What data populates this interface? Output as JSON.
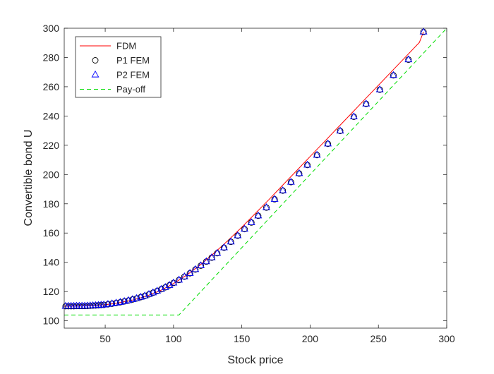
{
  "chart_data": {
    "type": "line",
    "title": "",
    "xlabel": "Stock price",
    "ylabel": "Convertible bond U",
    "xlim": [
      20,
      300
    ],
    "ylim": [
      95,
      300
    ],
    "xticks": [
      50,
      100,
      150,
      200,
      250,
      300
    ],
    "yticks": [
      100,
      120,
      140,
      160,
      180,
      200,
      220,
      240,
      260,
      280,
      300
    ],
    "grid": false,
    "legend_position": "top-left",
    "series": [
      {
        "name": "FDM",
        "style": "solid-line",
        "color": "#ff0000",
        "x": [
          20,
          30,
          40,
          50,
          60,
          70,
          80,
          90,
          100,
          110,
          120,
          130,
          140,
          150,
          160,
          170,
          180,
          190,
          200,
          210,
          220,
          230,
          240,
          250,
          260,
          270,
          280,
          283
        ],
        "y": [
          110.0,
          110.1,
          110.4,
          111.0,
          112.3,
          114.2,
          116.8,
          120.5,
          125.5,
          131.5,
          138.5,
          146.5,
          155.0,
          164.0,
          173.5,
          183.0,
          192.8,
          202.5,
          212.3,
          222.0,
          231.8,
          241.5,
          251.3,
          261.0,
          270.8,
          280.5,
          290.3,
          297.5
        ]
      },
      {
        "name": "P1 FEM",
        "style": "circle-markers",
        "color": "#000000",
        "x": [
          21,
          23,
          25,
          27,
          29,
          31,
          33,
          35,
          37,
          39,
          41,
          43,
          45,
          47,
          49,
          52,
          55,
          58,
          61,
          64,
          67,
          70,
          73,
          76,
          79,
          82,
          85,
          88,
          91,
          94,
          97,
          100,
          104,
          108,
          112,
          116,
          120,
          124,
          128,
          132,
          137,
          142,
          147,
          152,
          157,
          162,
          168,
          174,
          180,
          186,
          192,
          198,
          205,
          213,
          222,
          232,
          241,
          251,
          261,
          272,
          283
        ],
        "y": [
          110.0,
          110.0,
          110.0,
          110.0,
          110.1,
          110.1,
          110.1,
          110.1,
          110.2,
          110.3,
          110.4,
          110.5,
          110.6,
          110.8,
          110.9,
          111.3,
          111.7,
          112.2,
          112.7,
          113.3,
          113.9,
          114.6,
          115.3,
          116.2,
          117.1,
          118.1,
          119.2,
          120.4,
          121.6,
          122.9,
          124.3,
          125.9,
          127.9,
          130.2,
          132.5,
          135.1,
          137.7,
          140.5,
          143.2,
          146.2,
          150.0,
          154.0,
          158.2,
          162.7,
          167.2,
          171.8,
          177.4,
          183.1,
          189.0,
          194.8,
          200.7,
          206.5,
          213.3,
          221.0,
          229.8,
          239.5,
          248.3,
          258.0,
          267.8,
          278.5,
          297.5
        ]
      },
      {
        "name": "P2 FEM",
        "style": "triangle-markers",
        "color": "#0000ff",
        "x": [
          21,
          23,
          25,
          27,
          29,
          31,
          33,
          35,
          37,
          39,
          41,
          43,
          45,
          47,
          49,
          52,
          55,
          58,
          61,
          64,
          67,
          70,
          73,
          76,
          79,
          82,
          85,
          88,
          91,
          94,
          97,
          100,
          104,
          108,
          112,
          116,
          120,
          124,
          128,
          132,
          137,
          142,
          147,
          152,
          157,
          162,
          168,
          174,
          180,
          186,
          192,
          198,
          205,
          213,
          222,
          232,
          241,
          251,
          261,
          272,
          283
        ],
        "y": [
          110.0,
          110.0,
          110.0,
          110.0,
          110.1,
          110.1,
          110.1,
          110.1,
          110.2,
          110.3,
          110.4,
          110.5,
          110.6,
          110.8,
          110.9,
          111.3,
          111.7,
          112.2,
          112.7,
          113.3,
          113.9,
          114.6,
          115.3,
          116.2,
          117.1,
          118.1,
          119.2,
          120.4,
          121.6,
          122.9,
          124.3,
          125.9,
          127.9,
          130.2,
          132.5,
          135.1,
          137.7,
          140.5,
          143.2,
          146.2,
          150.0,
          154.0,
          158.2,
          162.7,
          167.2,
          171.8,
          177.4,
          183.1,
          189.0,
          194.8,
          200.7,
          206.5,
          213.3,
          221.0,
          229.8,
          239.5,
          248.3,
          258.0,
          267.8,
          278.5,
          297.5
        ]
      },
      {
        "name": "Pay-off",
        "style": "dashed-line",
        "color": "#00dd00",
        "x": [
          20,
          104,
          300
        ],
        "y": [
          104,
          104,
          300
        ]
      }
    ]
  }
}
